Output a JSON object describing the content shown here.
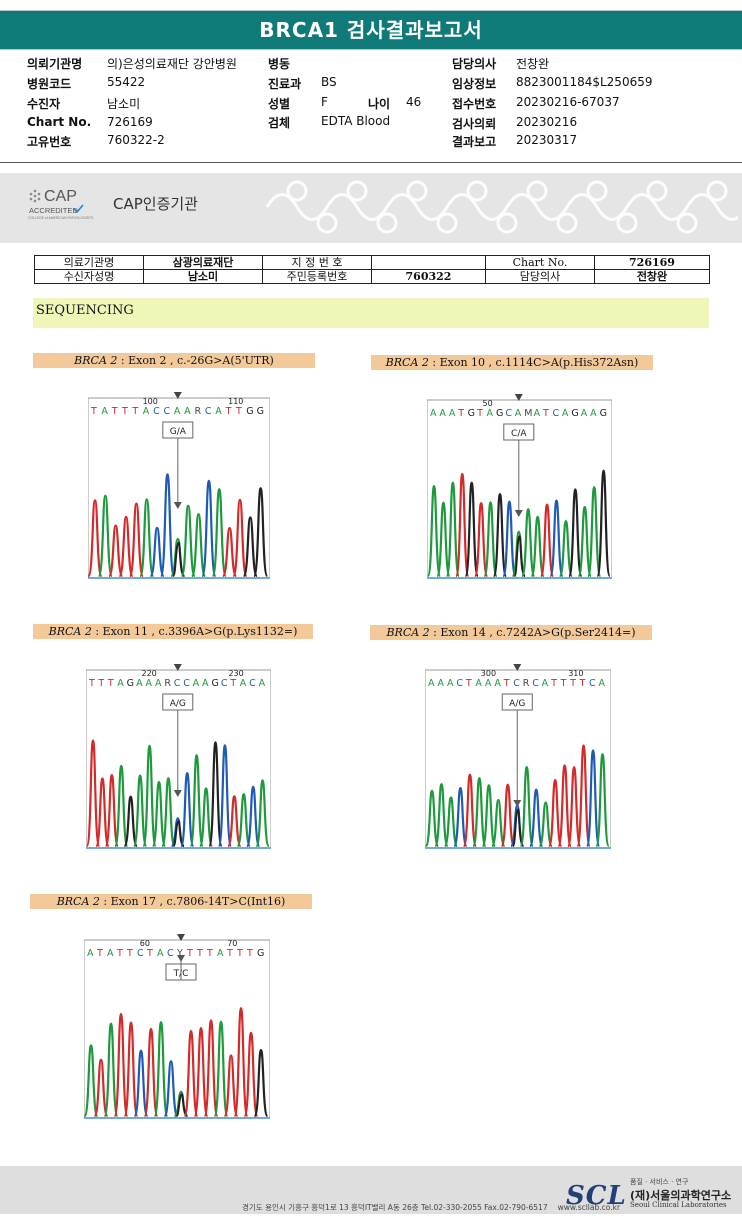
{
  "title": "BRCA1 검사결과보고서",
  "info_col1": [
    {
      "label": "의뢰기관명",
      "value": "의)은성의료재단 강안병원"
    },
    {
      "label": "병원코드",
      "value": "55422"
    },
    {
      "label": "수진자",
      "value": "남소미"
    },
    {
      "label": "Chart No.",
      "value": "726169"
    },
    {
      "label": "고유번호",
      "value": "760322-2"
    }
  ],
  "info_col2": {
    "ward": {
      "label": "병동",
      "value": ""
    },
    "dept": {
      "label": "진료과",
      "value": "BS"
    },
    "sex": {
      "label": "성별",
      "value": "F"
    },
    "age": {
      "label": "나이",
      "value": "46"
    },
    "specimen": {
      "label": "검체",
      "value": "EDTA Blood"
    }
  },
  "info_col3": [
    {
      "label": "담당의사",
      "value": "전창완"
    },
    {
      "label": "임상정보",
      "value": "8823001184$L250659"
    },
    {
      "label": "접수번호",
      "value": "20230216-67037"
    },
    {
      "label": "검사의뢰",
      "value": "20230216"
    },
    {
      "label": "결과보고",
      "value": "20230317"
    }
  ],
  "cap": {
    "logo_text": "CAP",
    "accredited": "ACCREDITED",
    "college": "COLLEGE of AMERICAN PATHOLOGISTS",
    "label": "CAP인증기관"
  },
  "patient_table": {
    "r1": {
      "l1": "의료기관명",
      "v1": "삼광의료재단",
      "l2": "지 정 번 호",
      "v2": "",
      "l3": "Chart No.",
      "v3": "726169"
    },
    "r2": {
      "l1": "수신자성명",
      "v1": "남소미",
      "l2": "주민등록번호",
      "v2": "760322",
      "l3": "담당의사",
      "v3": "전창완"
    }
  },
  "section_title": "SEQUENCING",
  "panels": [
    {
      "gene": "BRCA 2",
      "desc": " : Exon 2 , c.-26G>A(5'UTR)",
      "seq": "TATTTACCAARCATTGG",
      "p1": "100",
      "p2": "110",
      "call": "G/A"
    },
    {
      "gene": "BRCA 2",
      "desc": " : Exon 10 , c.1114C>A(p.His372Asn)",
      "seq": "AAATGTAGCAMATCAGAAG",
      "p1": "50",
      "p2": "",
      "call": "C/A"
    },
    {
      "gene": "BRCA 2",
      "desc": " : Exon 11 , c.3396A>G(p.Lys1132=)",
      "seq": "TTTAGAAARCCAAGCTACA",
      "p1": "220",
      "p2": "230",
      "call": "A/G"
    },
    {
      "gene": "BRCA 2",
      "desc": " : Exon 14 , c.7242A>G(p.Ser2414=)",
      "seq": "AAACTAAATCRCATTTTCA",
      "p1": "300",
      "p2": "310",
      "call": "A/G"
    },
    {
      "gene": "BRCA 2",
      "desc": " : Exon 17 , c.7806-14T>C(Int16)",
      "seq": "ATATTCTACYTTTATTTG",
      "p1": "60",
      "p2": "70",
      "call": "T/C"
    }
  ],
  "footer": {
    "address": "경기도 용인시 기흥구 흥덕1로 13 흥덕IT밸리 A동 26층  Tel.02-330-2055  Fax.02-790-6517",
    "url": "www.scllab.co.kr",
    "logo": "SCL",
    "small": "품질 · 서비스 · 연구",
    "name_ko": "(재)서울의과학연구소",
    "name_en": "Seoul Clinical Laboratories"
  },
  "colors": {
    "title_bar": "#0f7a78",
    "A": "#1e9a3c",
    "C": "#1f5bb4",
    "G": "#222222",
    "T": "#d42a2a",
    "panel_header": "#f3c99a",
    "seq_band": "#f0f6b8"
  }
}
